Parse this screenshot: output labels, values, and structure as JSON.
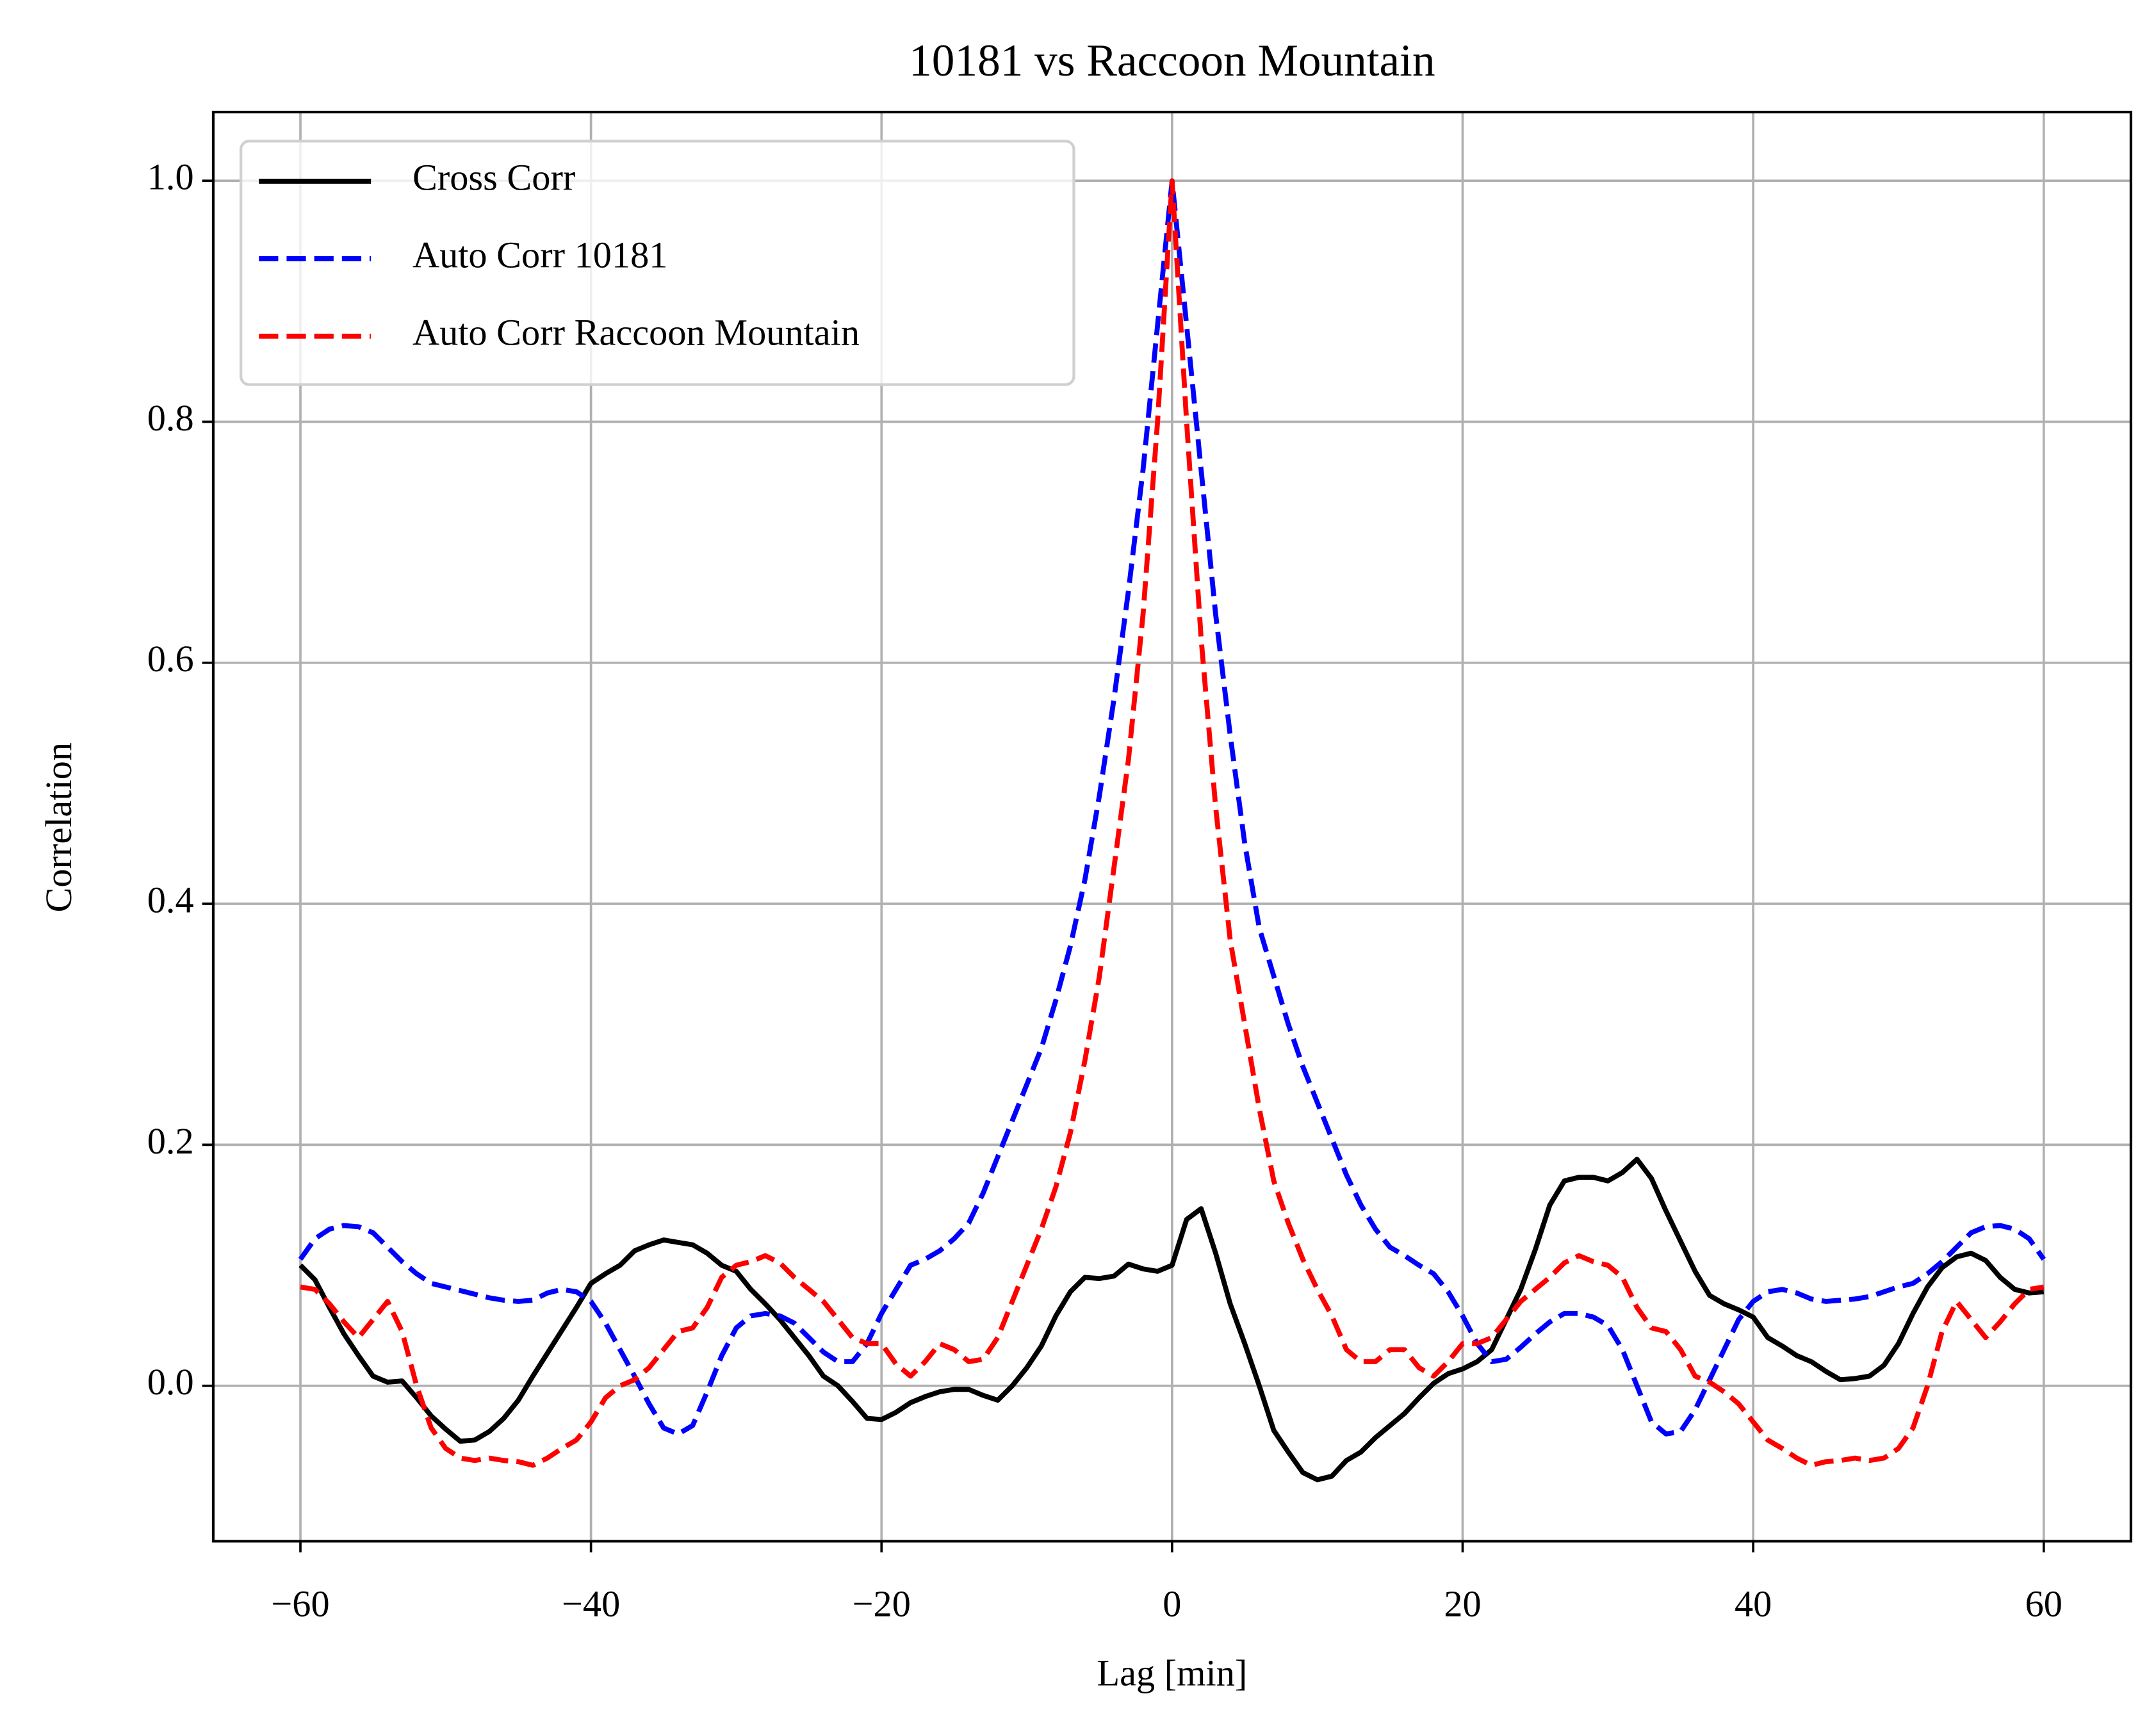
{
  "chart_data": {
    "type": "line",
    "title": "10181 vs Raccoon Mountain",
    "xlabel": "Lag [min]",
    "ylabel": "Correlation",
    "x": [
      -60,
      -59,
      -58,
      -57,
      -56,
      -55,
      -54,
      -53,
      -52,
      -51,
      -50,
      -49,
      -48,
      -47,
      -46,
      -45,
      -44,
      -43,
      -42,
      -41,
      -40,
      -39,
      -38,
      -37,
      -36,
      -35,
      -34,
      -33,
      -32,
      -31,
      -30,
      -29,
      -28,
      -27,
      -26,
      -25,
      -24,
      -23,
      -22,
      -21,
      -20,
      -19,
      -18,
      -17,
      -16,
      -15,
      -14,
      -13,
      -12,
      -11,
      -10,
      -9,
      -8,
      -7,
      -6,
      -5,
      -4,
      -3,
      -2,
      -1,
      0,
      1,
      2,
      3,
      4,
      5,
      6,
      7,
      8,
      9,
      10,
      11,
      12,
      13,
      14,
      15,
      16,
      17,
      18,
      19,
      20,
      21,
      22,
      23,
      24,
      25,
      26,
      27,
      28,
      29,
      30,
      31,
      32,
      33,
      34,
      35,
      36,
      37,
      38,
      39,
      40,
      41,
      42,
      43,
      44,
      45,
      46,
      47,
      48,
      49,
      50,
      51,
      52,
      53,
      54,
      55,
      56,
      57,
      58,
      59,
      60
    ],
    "series": [
      {
        "name": "Cross Corr",
        "color": "#000000",
        "linestyle": "solid",
        "values": [
          0.1,
          0.088,
          0.065,
          0.043,
          0.025,
          0.008,
          0.003,
          0.004,
          -0.01,
          -0.025,
          -0.036,
          -0.046,
          -0.045,
          -0.038,
          -0.027,
          -0.012,
          0.008,
          0.027,
          0.046,
          0.065,
          0.085,
          0.093,
          0.1,
          0.112,
          0.117,
          0.121,
          0.119,
          0.117,
          0.11,
          0.1,
          0.095,
          0.08,
          0.068,
          0.055,
          0.04,
          0.025,
          0.008,
          0.0,
          -0.013,
          -0.027,
          -0.028,
          -0.022,
          -0.014,
          -0.009,
          -0.005,
          -0.003,
          -0.003,
          -0.008,
          -0.012,
          0.0,
          0.015,
          0.033,
          0.058,
          0.078,
          0.09,
          0.089,
          0.091,
          0.101,
          0.097,
          0.095,
          0.1,
          0.138,
          0.147,
          0.11,
          0.068,
          0.035,
          0.0,
          -0.037,
          -0.055,
          -0.072,
          -0.078,
          -0.075,
          -0.062,
          -0.055,
          -0.043,
          -0.033,
          -0.023,
          -0.01,
          0.002,
          0.01,
          0.014,
          0.02,
          0.03,
          0.055,
          0.08,
          0.113,
          0.15,
          0.17,
          0.173,
          0.173,
          0.17,
          0.177,
          0.188,
          0.172,
          0.145,
          0.12,
          0.095,
          0.075,
          0.068,
          0.063,
          0.057,
          0.04,
          0.033,
          0.025,
          0.02,
          0.012,
          0.005,
          0.006,
          0.008,
          0.017,
          0.035,
          0.06,
          0.082,
          0.098,
          0.107,
          0.11,
          0.104,
          0.09,
          0.08,
          0.077,
          0.078
        ]
      },
      {
        "name": "Auto Corr 10181",
        "color": "#0000ff",
        "linestyle": "dashed",
        "values": [
          0.105,
          0.122,
          0.13,
          0.133,
          0.132,
          0.127,
          0.115,
          0.103,
          0.093,
          0.085,
          0.082,
          0.079,
          0.076,
          0.073,
          0.071,
          0.07,
          0.071,
          0.077,
          0.08,
          0.078,
          0.07,
          0.052,
          0.03,
          0.008,
          -0.015,
          -0.035,
          -0.04,
          -0.033,
          -0.005,
          0.025,
          0.048,
          0.058,
          0.06,
          0.058,
          0.052,
          0.04,
          0.028,
          0.02,
          0.02,
          0.035,
          0.06,
          0.08,
          0.1,
          0.105,
          0.112,
          0.122,
          0.135,
          0.16,
          0.19,
          0.22,
          0.25,
          0.28,
          0.32,
          0.365,
          0.42,
          0.49,
          0.57,
          0.66,
          0.76,
          0.88,
          1.0,
          0.88,
          0.76,
          0.64,
          0.54,
          0.45,
          0.38,
          0.34,
          0.3,
          0.265,
          0.235,
          0.205,
          0.175,
          0.15,
          0.13,
          0.115,
          0.108,
          0.1,
          0.093,
          0.078,
          0.058,
          0.035,
          0.02,
          0.022,
          0.032,
          0.043,
          0.053,
          0.06,
          0.06,
          0.057,
          0.05,
          0.03,
          0.0,
          -0.03,
          -0.04,
          -0.038,
          -0.02,
          0.005,
          0.03,
          0.055,
          0.07,
          0.078,
          0.08,
          0.077,
          0.072,
          0.07,
          0.071,
          0.072,
          0.074,
          0.078,
          0.082,
          0.085,
          0.093,
          0.103,
          0.115,
          0.127,
          0.132,
          0.133,
          0.13,
          0.122,
          0.105
        ]
      },
      {
        "name": "Auto Corr Raccoon Mountain",
        "color": "#ff0000",
        "linestyle": "dashed",
        "values": [
          0.082,
          0.08,
          0.068,
          0.053,
          0.04,
          0.055,
          0.07,
          0.045,
          0.0,
          -0.035,
          -0.052,
          -0.06,
          -0.062,
          -0.06,
          -0.062,
          -0.063,
          -0.066,
          -0.06,
          -0.052,
          -0.045,
          -0.03,
          -0.01,
          0.0,
          0.005,
          0.015,
          0.03,
          0.045,
          0.048,
          0.065,
          0.09,
          0.1,
          0.103,
          0.108,
          0.102,
          0.09,
          0.08,
          0.07,
          0.055,
          0.04,
          0.035,
          0.035,
          0.018,
          0.008,
          0.02,
          0.035,
          0.03,
          0.02,
          0.022,
          0.04,
          0.07,
          0.1,
          0.13,
          0.165,
          0.21,
          0.27,
          0.34,
          0.43,
          0.52,
          0.64,
          0.8,
          1.0,
          0.8,
          0.62,
          0.48,
          0.37,
          0.3,
          0.23,
          0.17,
          0.135,
          0.105,
          0.08,
          0.058,
          0.03,
          0.02,
          0.02,
          0.03,
          0.03,
          0.015,
          0.008,
          0.02,
          0.035,
          0.035,
          0.04,
          0.055,
          0.07,
          0.08,
          0.09,
          0.102,
          0.108,
          0.103,
          0.1,
          0.09,
          0.065,
          0.048,
          0.045,
          0.03,
          0.008,
          0.003,
          -0.005,
          -0.015,
          -0.03,
          -0.045,
          -0.052,
          -0.06,
          -0.066,
          -0.063,
          -0.062,
          -0.06,
          -0.062,
          -0.06,
          -0.052,
          -0.035,
          0.0,
          0.045,
          0.07,
          0.055,
          0.04,
          0.053,
          0.068,
          0.08,
          0.082
        ]
      }
    ],
    "xlim": [
      -66,
      66
    ],
    "ylim": [
      -0.129,
      1.057
    ],
    "xticks": [
      {
        "value": -60,
        "label": "−60"
      },
      {
        "value": -40,
        "label": "−40"
      },
      {
        "value": -20,
        "label": "−20"
      },
      0,
      20,
      40,
      60
    ],
    "yticks": [
      {
        "value": 0,
        "label": "0.0"
      },
      0.2,
      0.4,
      0.6,
      0.8,
      {
        "value": 1,
        "label": "1.0"
      }
    ],
    "grid": true,
    "legend": "upper left"
  }
}
